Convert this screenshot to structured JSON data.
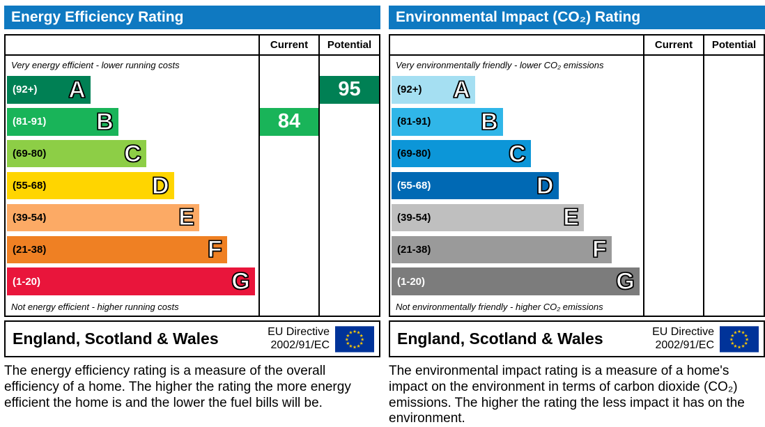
{
  "header_color": "#0f79c1",
  "panels": [
    {
      "title": "Energy Efficiency Rating",
      "columns": {
        "current": "Current",
        "potential": "Potential"
      },
      "top_note": "Very energy efficient - lower running costs",
      "bottom_note": "Not energy efficient - higher running costs",
      "bands": [
        {
          "range": "(92+)",
          "letter": "A",
          "color": "#008054",
          "range_color": "#ffffff",
          "width_pct": 33
        },
        {
          "range": "(81-91)",
          "letter": "B",
          "color": "#19b459",
          "range_color": "#ffffff",
          "width_pct": 44
        },
        {
          "range": "(69-80)",
          "letter": "C",
          "color": "#8dce46",
          "range_color": "#000000",
          "width_pct": 55
        },
        {
          "range": "(55-68)",
          "letter": "D",
          "color": "#ffd500",
          "range_color": "#000000",
          "width_pct": 66
        },
        {
          "range": "(39-54)",
          "letter": "E",
          "color": "#fcaa65",
          "range_color": "#000000",
          "width_pct": 76
        },
        {
          "range": "(21-38)",
          "letter": "F",
          "color": "#ef8023",
          "range_color": "#000000",
          "width_pct": 87
        },
        {
          "range": "(1-20)",
          "letter": "G",
          "color": "#e9153b",
          "range_color": "#ffffff",
          "width_pct": 98
        }
      ],
      "current": {
        "value": "84",
        "band": "B",
        "color": "#19b459"
      },
      "potential": {
        "value": "95",
        "band": "A",
        "color": "#008054"
      },
      "footer": {
        "region": "England, Scotland & Wales",
        "directive": [
          "EU Directive",
          "2002/91/EC"
        ]
      },
      "description": "The energy efficiency rating is a measure of the overall efficiency of a home. The higher the rating the more energy efficient the home is and the lower the fuel bills will be."
    },
    {
      "title": "Environmental Impact (CO₂) Rating",
      "columns": {
        "current": "Current",
        "potential": "Potential"
      },
      "top_note": "Very environmentally friendly - lower CO₂ emissions",
      "bottom_note": "Not environmentally friendly - higher CO₂ emissions",
      "bands": [
        {
          "range": "(92+)",
          "letter": "A",
          "color": "#a5dff2",
          "range_color": "#000000",
          "width_pct": 33
        },
        {
          "range": "(81-91)",
          "letter": "B",
          "color": "#30b6e8",
          "range_color": "#000000",
          "width_pct": 44
        },
        {
          "range": "(69-80)",
          "letter": "C",
          "color": "#0c96d8",
          "range_color": "#000000",
          "width_pct": 55
        },
        {
          "range": "(55-68)",
          "letter": "D",
          "color": "#0069b4",
          "range_color": "#ffffff",
          "width_pct": 66
        },
        {
          "range": "(39-54)",
          "letter": "E",
          "color": "#bfbfbf",
          "range_color": "#000000",
          "width_pct": 76
        },
        {
          "range": "(21-38)",
          "letter": "F",
          "color": "#9a9a9a",
          "range_color": "#000000",
          "width_pct": 87
        },
        {
          "range": "(1-20)",
          "letter": "G",
          "color": "#7c7c7c",
          "range_color": "#ffffff",
          "width_pct": 98
        }
      ],
      "current": null,
      "potential": null,
      "footer": {
        "region": "England, Scotland & Wales",
        "directive": [
          "EU Directive",
          "2002/91/EC"
        ]
      },
      "description": "The environmental impact rating is a measure of a home's impact on the environment in terms of carbon dioxide (CO₂) emissions. The higher the rating the less impact it has on the environment."
    }
  ],
  "chart_data": [
    {
      "type": "bar",
      "title": "Energy Efficiency Rating",
      "categories": [
        "A (92+)",
        "B (81-91)",
        "C (69-80)",
        "D (55-68)",
        "E (39-54)",
        "F (21-38)",
        "G (1-20)"
      ],
      "values": [
        33,
        44,
        55,
        66,
        76,
        87,
        98
      ],
      "current_rating": 84,
      "current_band": "B",
      "potential_rating": 95,
      "potential_band": "A",
      "xlabel": "",
      "ylabel": "",
      "legend": [
        "Current",
        "Potential"
      ]
    },
    {
      "type": "bar",
      "title": "Environmental Impact (CO₂) Rating",
      "categories": [
        "A (92+)",
        "B (81-91)",
        "C (69-80)",
        "D (55-68)",
        "E (39-54)",
        "F (21-38)",
        "G (1-20)"
      ],
      "values": [
        33,
        44,
        55,
        66,
        76,
        87,
        98
      ],
      "current_rating": null,
      "potential_rating": null,
      "xlabel": "",
      "ylabel": "",
      "legend": [
        "Current",
        "Potential"
      ]
    }
  ]
}
